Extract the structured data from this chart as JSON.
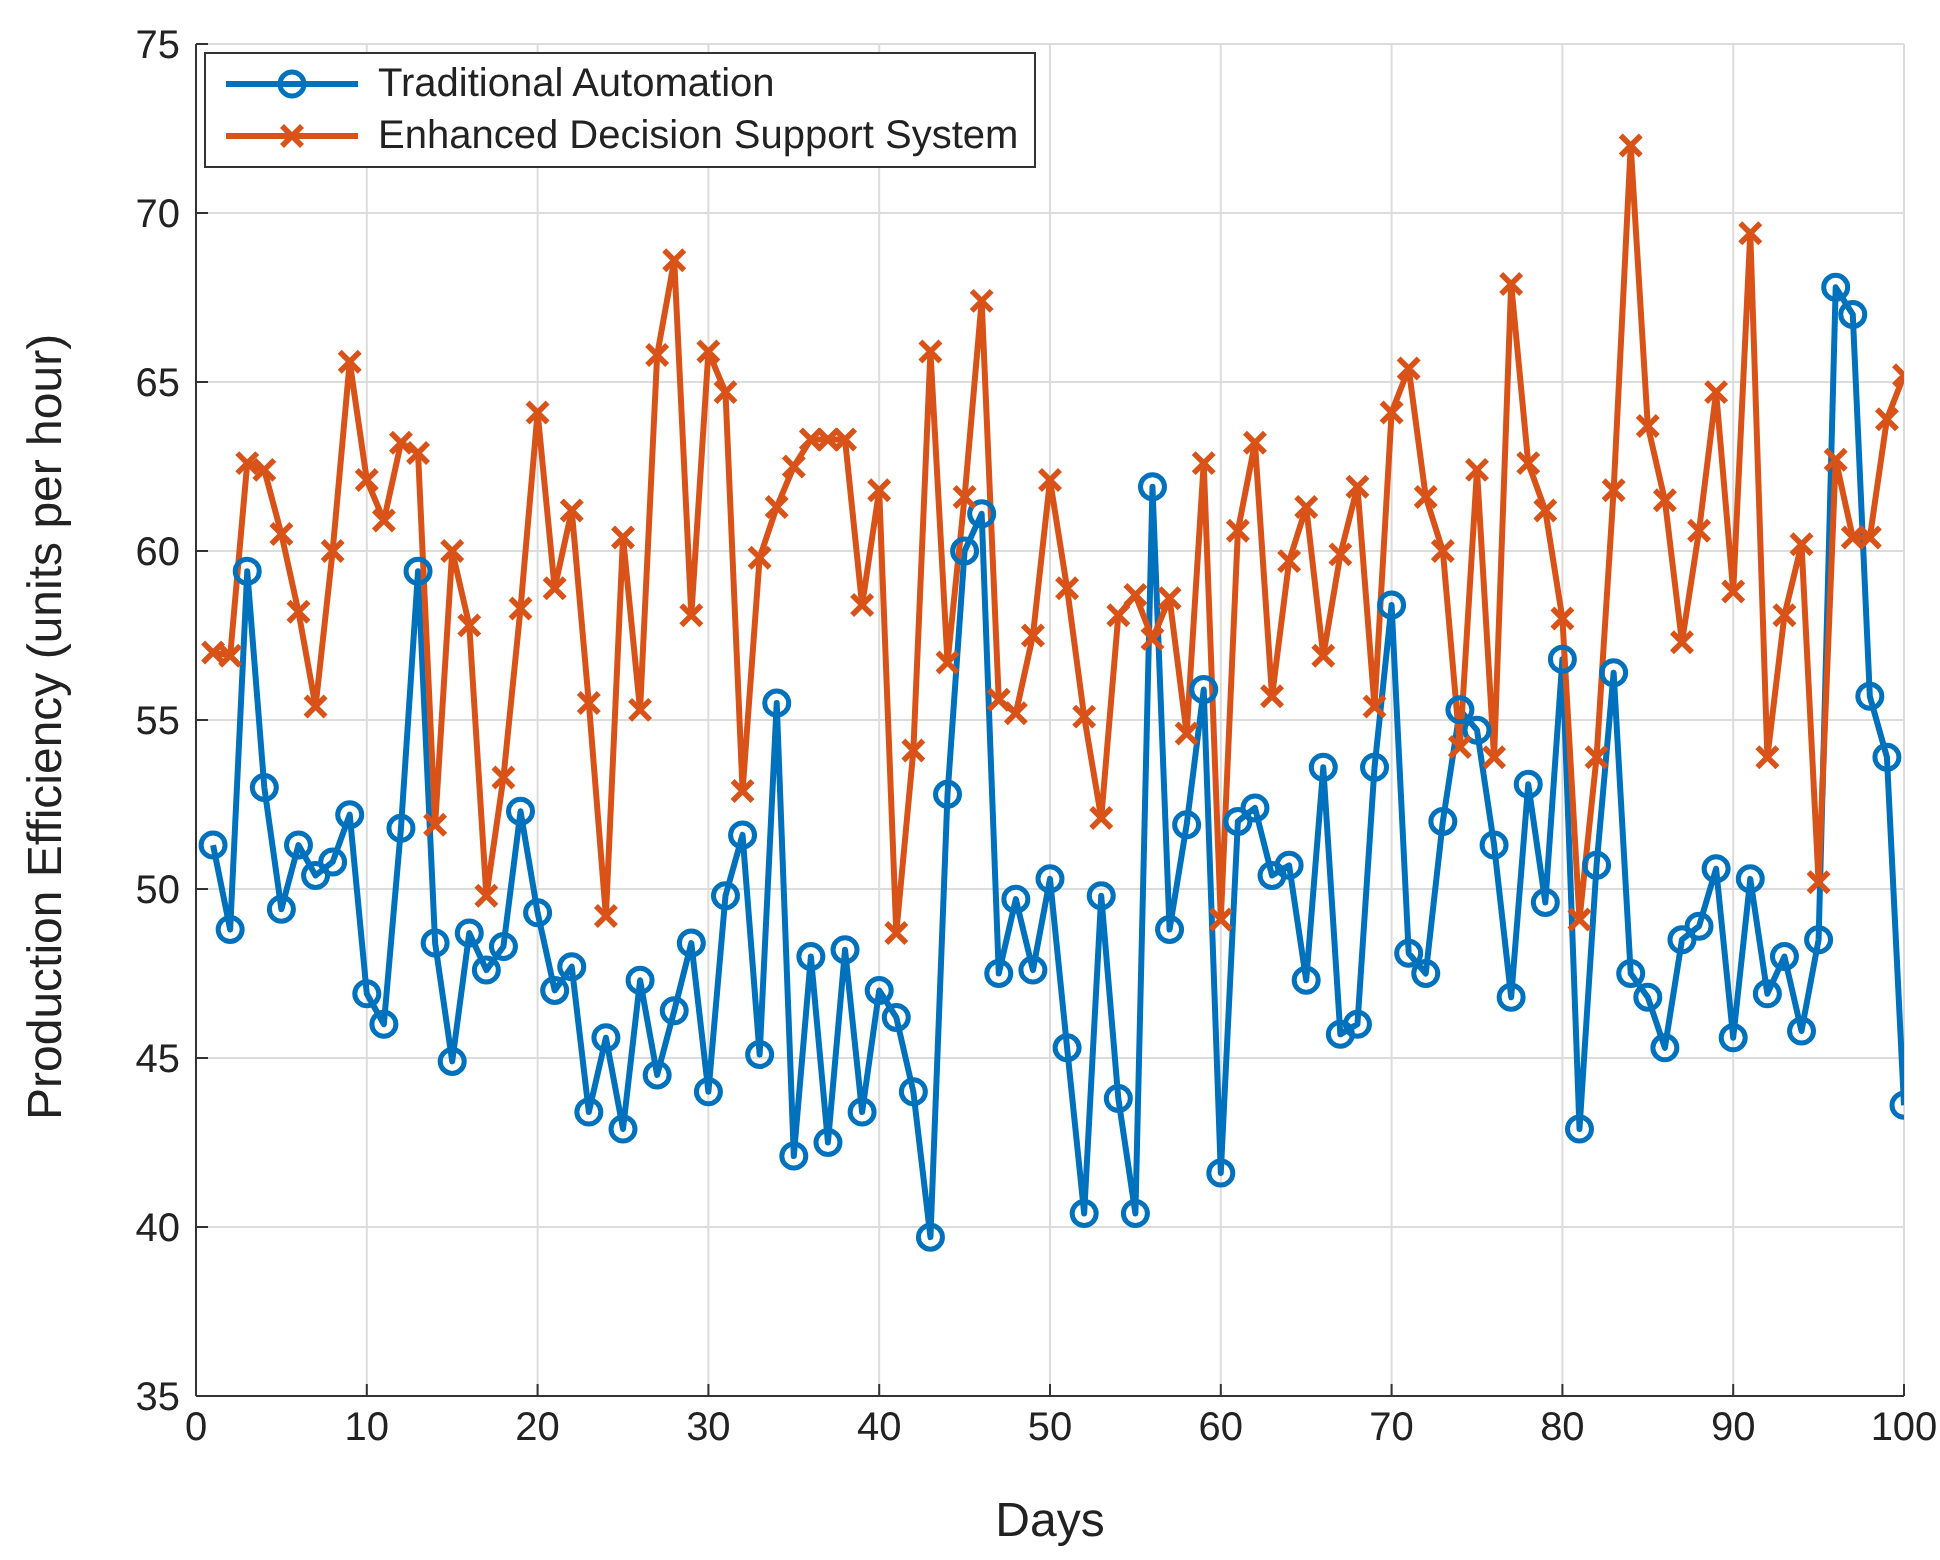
{
  "chart_data": {
    "type": "line",
    "xlabel": "Days",
    "ylabel": "Production Efficiency (units per hour)",
    "x": [
      1,
      2,
      3,
      4,
      5,
      6,
      7,
      8,
      9,
      10,
      11,
      12,
      13,
      14,
      15,
      16,
      17,
      18,
      19,
      20,
      21,
      22,
      23,
      24,
      25,
      26,
      27,
      28,
      29,
      30,
      31,
      32,
      33,
      34,
      35,
      36,
      37,
      38,
      39,
      40,
      41,
      42,
      43,
      44,
      45,
      46,
      47,
      48,
      49,
      50,
      51,
      52,
      53,
      54,
      55,
      56,
      57,
      58,
      59,
      60,
      61,
      62,
      63,
      64,
      65,
      66,
      67,
      68,
      69,
      70,
      71,
      72,
      73,
      74,
      75,
      76,
      77,
      78,
      79,
      80,
      81,
      82,
      83,
      84,
      85,
      86,
      87,
      88,
      89,
      90,
      91,
      92,
      93,
      94,
      95,
      96,
      97,
      98,
      99,
      100
    ],
    "xlim": [
      0,
      100
    ],
    "xticks": [
      0,
      10,
      20,
      30,
      40,
      50,
      60,
      70,
      80,
      90,
      100
    ],
    "ylim": [
      35,
      75
    ],
    "yticks": [
      35,
      40,
      45,
      50,
      55,
      60,
      65,
      70,
      75
    ],
    "grid": true,
    "legend": "top left",
    "series": [
      {
        "name": "Traditional Automation",
        "color": "#0072bd",
        "marker": "circle",
        "values": [
          51.3,
          48.8,
          59.4,
          53.0,
          49.4,
          51.3,
          50.4,
          50.8,
          52.2,
          46.9,
          46.0,
          51.8,
          59.4,
          48.4,
          44.9,
          48.7,
          47.6,
          48.3,
          52.3,
          49.3,
          47.0,
          47.7,
          43.4,
          45.6,
          42.9,
          47.3,
          44.5,
          46.4,
          48.4,
          44.0,
          49.8,
          51.6,
          45.1,
          55.5,
          42.1,
          48.0,
          42.5,
          48.2,
          43.4,
          47.0,
          46.2,
          44.0,
          39.7,
          52.8,
          60.0,
          61.1,
          47.5,
          49.7,
          47.6,
          50.3,
          45.3,
          40.4,
          49.8,
          43.8,
          40.4,
          61.9,
          48.8,
          51.9,
          55.9,
          41.6,
          52.0,
          52.4,
          50.4,
          50.7,
          47.3,
          53.6,
          45.7,
          46.0,
          53.6,
          58.4,
          48.1,
          47.5,
          52.0,
          55.3,
          54.7,
          51.3,
          46.8,
          53.1,
          49.6,
          56.8,
          42.9,
          50.7,
          56.4,
          47.5,
          46.8,
          45.3,
          48.5,
          48.9,
          50.6,
          45.6,
          50.3,
          46.9,
          48.0,
          45.8,
          48.5,
          67.8,
          67.0,
          55.7,
          53.9,
          43.6
        ]
      },
      {
        "name": "Enhanced Decision Support System",
        "color": "#d95319",
        "marker": "cross",
        "values": [
          57.0,
          56.9,
          62.6,
          62.4,
          60.5,
          58.2,
          55.4,
          60.0,
          65.6,
          62.1,
          60.9,
          63.2,
          62.9,
          51.9,
          60.0,
          57.8,
          49.8,
          53.3,
          58.3,
          64.1,
          58.9,
          61.2,
          55.5,
          49.2,
          60.4,
          55.3,
          65.8,
          68.6,
          58.1,
          65.9,
          64.7,
          52.9,
          59.8,
          61.3,
          62.5,
          63.3,
          63.3,
          63.3,
          58.4,
          61.8,
          48.7,
          54.1,
          65.9,
          56.7,
          61.6,
          67.4,
          55.6,
          55.2,
          57.5,
          62.1,
          58.9,
          55.1,
          52.1,
          58.1,
          58.7,
          57.4,
          58.6,
          54.6,
          62.6,
          49.1,
          60.6,
          63.2,
          55.7,
          59.7,
          61.3,
          56.9,
          59.9,
          61.9,
          55.4,
          64.1,
          65.4,
          61.6,
          60.0,
          54.2,
          62.4,
          53.9,
          67.9,
          62.6,
          61.2,
          58.0,
          49.1,
          53.9,
          61.8,
          72.0,
          63.7,
          61.5,
          57.3,
          60.6,
          64.7,
          58.8,
          69.4,
          53.9,
          58.1,
          60.2,
          50.2,
          62.7,
          60.4,
          60.4,
          63.9,
          65.2
        ]
      }
    ]
  }
}
